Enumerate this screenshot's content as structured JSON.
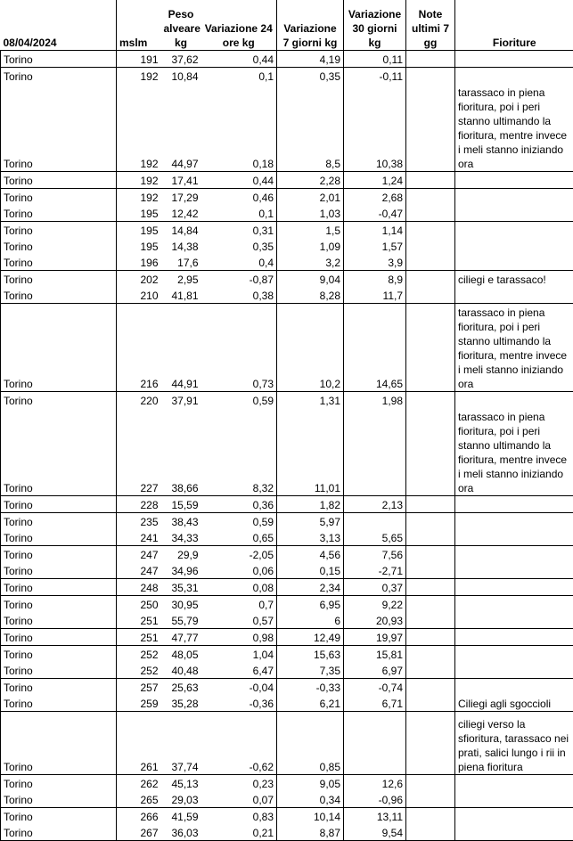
{
  "headers": [
    "08/04/2024",
    "mslm",
    "Peso alveare kg",
    "Variazione 24 ore kg",
    "Variazione 7 giorni kg",
    "Variazione 30 giorni kg",
    "Note ultimi 7 gg",
    "Fioriture"
  ],
  "rows": [
    {
      "loc": "Torino",
      "mslm": "191",
      "peso": "37,62",
      "v24": "0,44",
      "v7": "4,19",
      "v30": "0,11",
      "note": "",
      "fio": "",
      "sep": true
    },
    {
      "loc": "Torino",
      "mslm": "192",
      "peso": "10,84",
      "v24": "0,1",
      "v7": "0,35",
      "v30": "-0,11",
      "note": "",
      "fio": "",
      "sep": true
    },
    {
      "loc": "Torino",
      "mslm": "192",
      "peso": "44,97",
      "v24": "0,18",
      "v7": "8,5",
      "v30": "10,38",
      "note": "",
      "fio": "tarassaco in piena fioritura, poi i peri stanno ultimando la fioritura, mentre invece i meli stanno iniziando ora",
      "tall": 6
    },
    {
      "loc": "Torino",
      "mslm": "192",
      "peso": "17,41",
      "v24": "0,44",
      "v7": "2,28",
      "v30": "1,24",
      "note": "",
      "fio": "",
      "sep": true
    },
    {
      "loc": "Torino",
      "mslm": "192",
      "peso": "17,29",
      "v24": "0,46",
      "v7": "2,01",
      "v30": "2,68",
      "note": "",
      "fio": "",
      "sep": true
    },
    {
      "loc": "Torino",
      "mslm": "195",
      "peso": "12,42",
      "v24": "0,1",
      "v7": "1,03",
      "v30": "-0,47",
      "note": "",
      "fio": ""
    },
    {
      "loc": "Torino",
      "mslm": "195",
      "peso": "14,84",
      "v24": "0,31",
      "v7": "1,5",
      "v30": "1,14",
      "note": "",
      "fio": "",
      "sep": true
    },
    {
      "loc": "Torino",
      "mslm": "195",
      "peso": "14,38",
      "v24": "0,35",
      "v7": "1,09",
      "v30": "1,57",
      "note": "",
      "fio": ""
    },
    {
      "loc": "Torino",
      "mslm": "196",
      "peso": "17,6",
      "v24": "0,4",
      "v7": "3,2",
      "v30": "3,9",
      "note": "",
      "fio": ""
    },
    {
      "loc": "Torino",
      "mslm": "202",
      "peso": "2,95",
      "v24": "-0,87",
      "v7": "9,04",
      "v30": "8,9",
      "note": "",
      "fio": "ciliegi e tarassaco!",
      "sep": true
    },
    {
      "loc": "Torino",
      "mslm": "210",
      "peso": "41,81",
      "v24": "0,38",
      "v7": "8,28",
      "v30": "11,7",
      "note": "",
      "fio": ""
    },
    {
      "loc": "Torino",
      "mslm": "216",
      "peso": "44,91",
      "v24": "0,73",
      "v7": "10,2",
      "v30": "14,65",
      "note": "",
      "fio": "tarassaco in piena fioritura, poi i peri stanno ultimando la fioritura, mentre invece i meli stanno iniziando ora",
      "sep": true,
      "tall": 6
    },
    {
      "loc": "Torino",
      "mslm": "220",
      "peso": "37,91",
      "v24": "0,59",
      "v7": "1,31",
      "v30": "1,98",
      "note": "",
      "fio": "",
      "sep": true
    },
    {
      "loc": "Torino",
      "mslm": "227",
      "peso": "38,66",
      "v24": "8,32",
      "v7": "11,01",
      "v30": "",
      "note": "",
      "fio": "tarassaco in piena fioritura, poi i peri stanno ultimando la fioritura, mentre invece i meli stanno iniziando ora",
      "tall": 6
    },
    {
      "loc": "Torino",
      "mslm": "228",
      "peso": "15,59",
      "v24": "0,36",
      "v7": "1,82",
      "v30": "2,13",
      "note": "",
      "fio": "",
      "sep": true
    },
    {
      "loc": "Torino",
      "mslm": "235",
      "peso": "38,43",
      "v24": "0,59",
      "v7": "5,97",
      "v30": "",
      "note": "",
      "fio": "",
      "sep": true
    },
    {
      "loc": "Torino",
      "mslm": "241",
      "peso": "34,33",
      "v24": "0,65",
      "v7": "3,13",
      "v30": "5,65",
      "note": "",
      "fio": ""
    },
    {
      "loc": "Torino",
      "mslm": "247",
      "peso": "29,9",
      "v24": "-2,05",
      "v7": "4,56",
      "v30": "7,56",
      "note": "",
      "fio": "",
      "sep": true
    },
    {
      "loc": "Torino",
      "mslm": "247",
      "peso": "34,96",
      "v24": "0,06",
      "v7": "0,15",
      "v30": "-2,71",
      "note": "",
      "fio": ""
    },
    {
      "loc": "Torino",
      "mslm": "248",
      "peso": "35,31",
      "v24": "0,08",
      "v7": "2,34",
      "v30": "0,37",
      "note": "",
      "fio": "",
      "sep": true
    },
    {
      "loc": "Torino",
      "mslm": "250",
      "peso": "30,95",
      "v24": "0,7",
      "v7": "6,95",
      "v30": "9,22",
      "note": "",
      "fio": "",
      "sep": true
    },
    {
      "loc": "Torino",
      "mslm": "251",
      "peso": "55,79",
      "v24": "0,57",
      "v7": "6",
      "v30": "20,93",
      "note": "",
      "fio": ""
    },
    {
      "loc": "Torino",
      "mslm": "251",
      "peso": "47,77",
      "v24": "0,98",
      "v7": "12,49",
      "v30": "19,97",
      "note": "",
      "fio": "",
      "sep": true
    },
    {
      "loc": "Torino",
      "mslm": "252",
      "peso": "48,05",
      "v24": "1,04",
      "v7": "15,63",
      "v30": "15,81",
      "note": "",
      "fio": "",
      "sep": true
    },
    {
      "loc": "Torino",
      "mslm": "252",
      "peso": "40,48",
      "v24": "6,47",
      "v7": "7,35",
      "v30": "6,97",
      "note": "",
      "fio": ""
    },
    {
      "loc": "Torino",
      "mslm": "257",
      "peso": "25,63",
      "v24": "-0,04",
      "v7": "-0,33",
      "v30": "-0,74",
      "note": "",
      "fio": "",
      "sep": true
    },
    {
      "loc": "Torino",
      "mslm": "259",
      "peso": "35,28",
      "v24": "-0,36",
      "v7": "6,21",
      "v30": "6,71",
      "note": "",
      "fio": "Ciliegi agli sgoccioli"
    },
    {
      "loc": "Torino",
      "mslm": "261",
      "peso": "37,74",
      "v24": "-0,62",
      "v7": "0,85",
      "v30": "",
      "note": "",
      "fio": "ciliegi verso la sfioritura, tarassaco nei prati, salici lungo i rii in piena fioritura",
      "sep": true,
      "tall": 4
    },
    {
      "loc": "Torino",
      "mslm": "262",
      "peso": "45,13",
      "v24": "0,23",
      "v7": "9,05",
      "v30": "12,6",
      "note": "",
      "fio": "",
      "sep": true
    },
    {
      "loc": "Torino",
      "mslm": "265",
      "peso": "29,03",
      "v24": "0,07",
      "v7": "0,34",
      "v30": "-0,96",
      "note": "",
      "fio": ""
    },
    {
      "loc": "Torino",
      "mslm": "266",
      "peso": "41,59",
      "v24": "0,83",
      "v7": "10,14",
      "v30": "13,11",
      "note": "",
      "fio": "",
      "sep": true
    },
    {
      "loc": "Torino",
      "mslm": "267",
      "peso": "36,03",
      "v24": "0,21",
      "v7": "8,87",
      "v30": "9,54",
      "note": "",
      "fio": ""
    }
  ]
}
